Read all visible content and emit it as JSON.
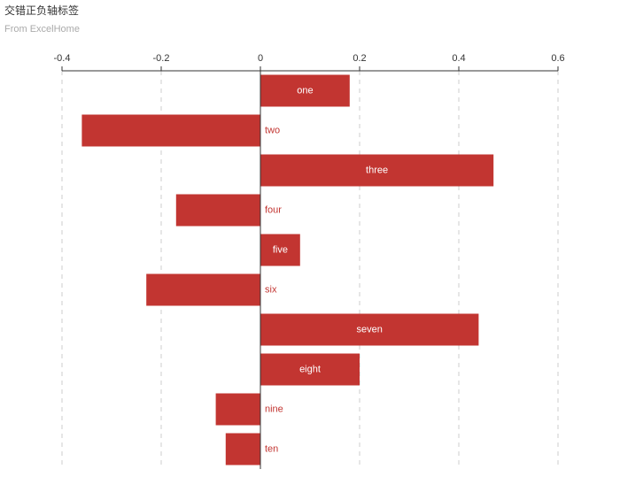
{
  "chart_data": {
    "type": "bar",
    "orientation": "horizontal",
    "title": "交错正负轴标签",
    "subtitle": "From ExcelHome",
    "categories": [
      "one",
      "two",
      "three",
      "four",
      "five",
      "six",
      "seven",
      "eight",
      "nine",
      "ten"
    ],
    "values": [
      0.18,
      -0.36,
      0.47,
      -0.17,
      0.08,
      -0.23,
      0.44,
      0.2,
      -0.09,
      -0.07
    ],
    "color": "#c23531",
    "xlim": [
      -0.4,
      0.6
    ],
    "xticks": [
      -0.4,
      -0.2,
      0,
      0.2,
      0.4,
      0.6
    ],
    "grid": true
  }
}
